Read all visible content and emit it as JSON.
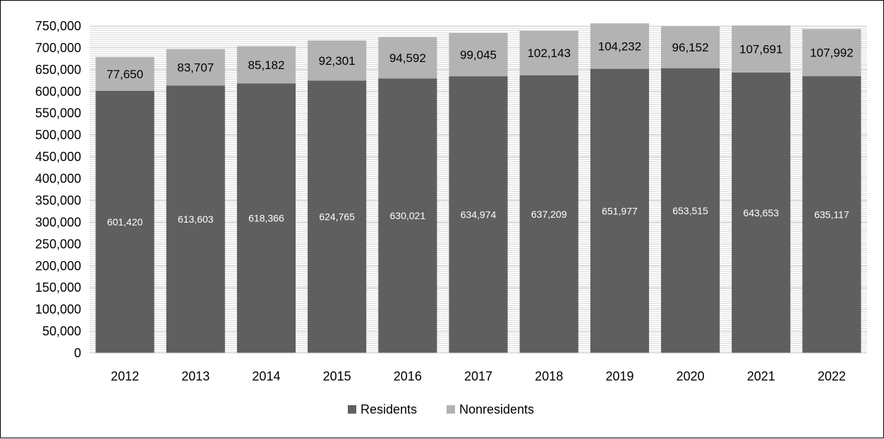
{
  "chart_data": {
    "type": "bar",
    "stacked": true,
    "categories": [
      "2012",
      "2013",
      "2014",
      "2015",
      "2016",
      "2017",
      "2018",
      "2019",
      "2020",
      "2021",
      "2022"
    ],
    "series": [
      {
        "name": "Residents",
        "color": "#5f5f5f",
        "values": [
          601420,
          613603,
          618366,
          624765,
          630021,
          634974,
          637209,
          651977,
          653515,
          643653,
          635117
        ],
        "labels": [
          "601,420",
          "613,603",
          "618,366",
          "624,765",
          "630,021",
          "634,974",
          "637,209",
          "651,977",
          "653,515",
          "643,653",
          "635,117"
        ]
      },
      {
        "name": "Nonresidents",
        "color": "#b3b3b3",
        "values": [
          77650,
          83707,
          85182,
          92301,
          94592,
          99045,
          102143,
          104232,
          96152,
          107691,
          107992
        ],
        "labels": [
          "77,650",
          "83,707",
          "85,182",
          "92,301",
          "94,592",
          "99,045",
          "102,143",
          "104,232",
          "96,152",
          "107,691",
          "107,992"
        ]
      }
    ],
    "yticks": [
      "0",
      "50,000",
      "100,000",
      "150,000",
      "200,000",
      "250,000",
      "300,000",
      "350,000",
      "400,000",
      "450,000",
      "500,000",
      "550,000",
      "600,000",
      "650,000",
      "700,000",
      "750,000"
    ],
    "ylim": [
      0,
      750000
    ],
    "grid": true,
    "legend_position": "bottom"
  }
}
